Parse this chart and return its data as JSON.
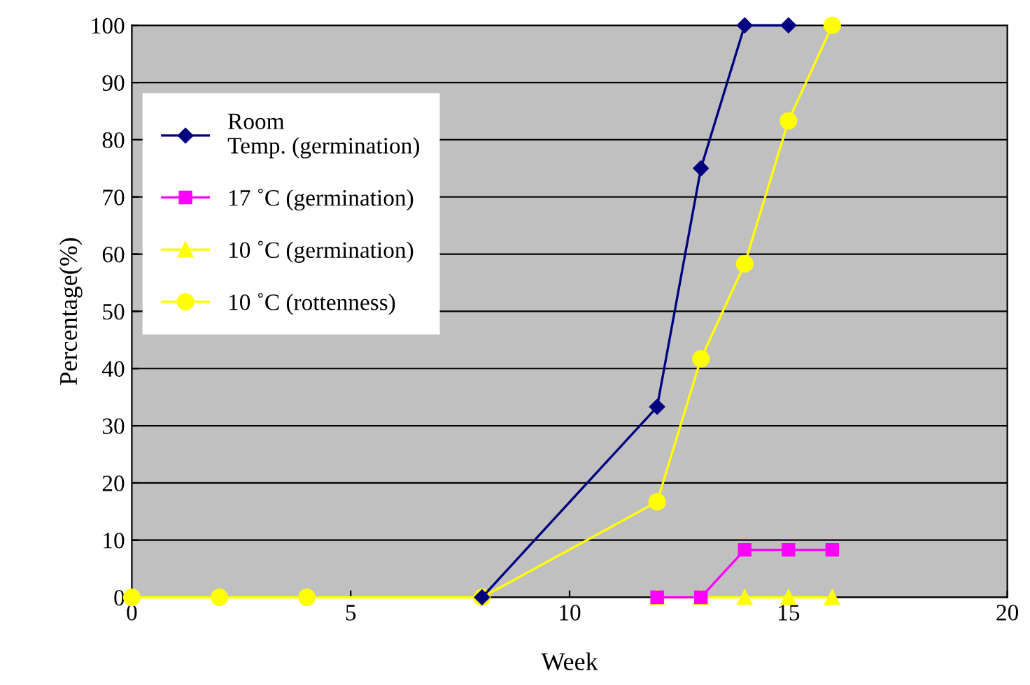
{
  "chart_data": {
    "type": "line",
    "xlabel": "Week",
    "ylabel": "Percentage(%)",
    "xlim": [
      0,
      20
    ],
    "xticks": [
      0,
      5,
      10,
      15,
      20
    ],
    "ylim": [
      0,
      100
    ],
    "yticks": [
      0,
      10,
      20,
      30,
      40,
      50,
      60,
      70,
      80,
      90,
      100
    ],
    "grid": "y",
    "legend": "top left",
    "series": [
      {
        "name": "Room\nTemp. (germination)",
        "color": "#000080",
        "marker": "diamond",
        "x": [
          8,
          12,
          13,
          14,
          15
        ],
        "values": [
          0,
          33.3,
          75,
          100,
          100
        ]
      },
      {
        "name": "17 ˚C (germination)",
        "color": "#ff00ff",
        "marker": "square",
        "x": [
          12,
          13,
          14,
          15,
          16
        ],
        "values": [
          0,
          0,
          8.3,
          8.3,
          8.3
        ]
      },
      {
        "name": "10 ˚C (germination)",
        "color": "#ffff00",
        "marker": "triangle",
        "x": [
          12,
          13,
          14,
          15,
          16
        ],
        "values": [
          0,
          0,
          0,
          0,
          0
        ]
      },
      {
        "name": "10 ˚C (rottenness)",
        "color": "#ffff00",
        "marker": "circle",
        "x": [
          0,
          2,
          4,
          8,
          12,
          13,
          14,
          15,
          16
        ],
        "values": [
          0,
          0,
          0,
          0,
          16.7,
          41.7,
          58.3,
          83.3,
          100
        ]
      }
    ]
  }
}
